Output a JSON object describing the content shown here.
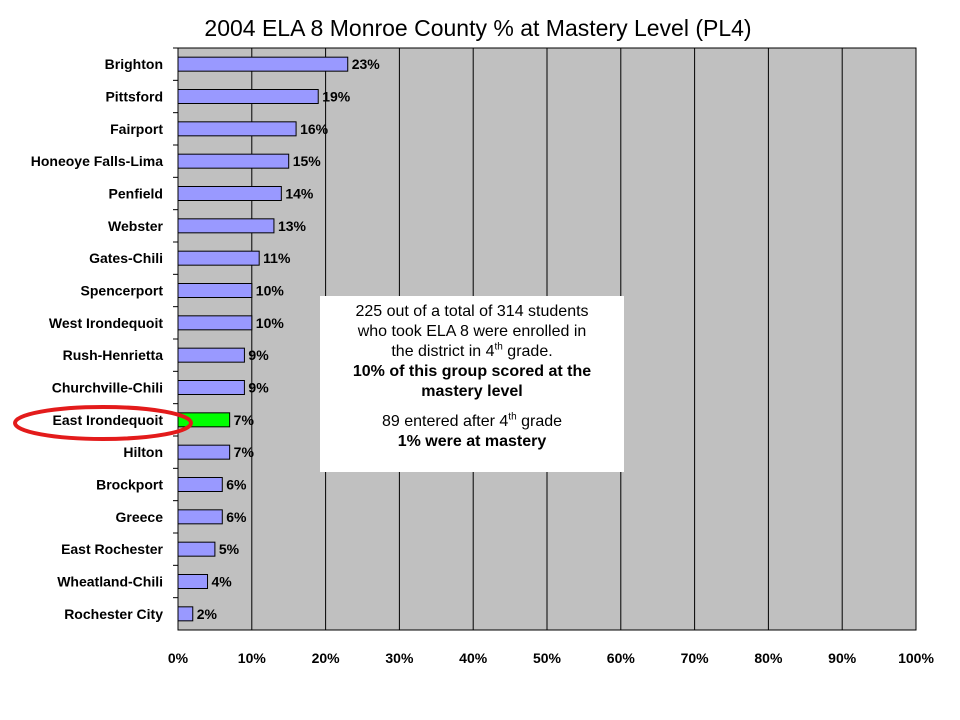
{
  "chart_data": {
    "type": "bar",
    "orientation": "horizontal",
    "title": "2004 ELA 8 Monroe County % at Mastery Level (PL4)",
    "categories": [
      "Brighton",
      "Pittsford",
      "Fairport",
      "Honeoye Falls-Lima",
      "Penfield",
      "Webster",
      "Gates-Chili",
      "Spencerport",
      "West Irondequoit",
      "Rush-Henrietta",
      "Churchville-Chili",
      "East Irondequoit",
      "Hilton",
      "Brockport",
      "Greece",
      "East Rochester",
      "Wheatland-Chili",
      "Rochester City"
    ],
    "values": [
      23,
      19,
      16,
      15,
      14,
      13,
      11,
      10,
      10,
      9,
      9,
      7,
      7,
      6,
      6,
      5,
      4,
      2
    ],
    "value_labels": [
      "23%",
      "19%",
      "16%",
      "15%",
      "14%",
      "13%",
      "11%",
      "10%",
      "10%",
      "9%",
      "9%",
      "7%",
      "7%",
      "6%",
      "6%",
      "5%",
      "4%",
      "2%"
    ],
    "highlight_category": "East Irondequoit",
    "xlim": [
      0,
      100
    ],
    "xticks": [
      0,
      10,
      20,
      30,
      40,
      50,
      60,
      70,
      80,
      90,
      100
    ],
    "xtick_labels": [
      "0%",
      "10%",
      "20%",
      "30%",
      "40%",
      "50%",
      "60%",
      "70%",
      "80%",
      "90%",
      "100%"
    ],
    "grid": "vertical",
    "legend": "none",
    "colors": {
      "bar": "#9999ff",
      "highlight_bar": "#00ff00",
      "plot_background": "#c0c0c0",
      "circle": "#e31b1b"
    }
  },
  "annotation": {
    "line1": "225 out of a total of 314 students",
    "line2": "who took ELA 8 were enrolled in",
    "line3_pre": "the district in 4",
    "line3_sup": "th",
    "line3_post": " grade.",
    "line4": "10% of this group scored at the",
    "line5": "mastery level",
    "line6_pre": "89 entered after 4",
    "line6_sup": "th",
    "line6_post": " grade",
    "line7": "1% were at mastery"
  }
}
